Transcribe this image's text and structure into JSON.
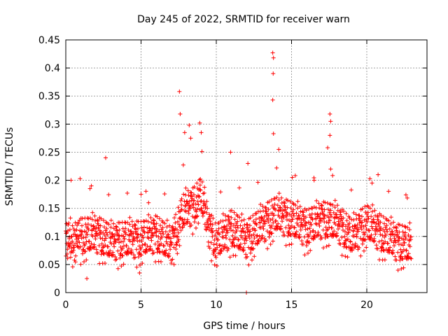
{
  "chart_data": {
    "type": "scatter",
    "marker": "plus",
    "title": "Day 245 of 2022, SRMTID for receiver warn",
    "xlabel": "GPS time / hours",
    "ylabel": "SRMTID / TECUs",
    "xlim": [
      0,
      24
    ],
    "ylim": [
      0,
      0.45
    ],
    "xticks": [
      0,
      5,
      10,
      15,
      20
    ],
    "yticks": [
      0,
      0.05,
      0.1,
      0.15,
      0.2,
      0.25,
      0.3,
      0.35,
      0.4,
      0.45
    ],
    "xtick_labels": [
      "0",
      "5",
      "10",
      "15",
      "20"
    ],
    "ytick_labels": [
      "0",
      "0.05",
      "0.1",
      "0.15",
      "0.2",
      "0.25",
      "0.3",
      "0.35",
      "0.4",
      "0.45"
    ],
    "grid": true,
    "series_color": "#ff0000",
    "series": [
      {
        "name": "SRMTID",
        "x_start": 0.0,
        "x_end": 22.95,
        "baseline": [
          [
            0,
            0.09
          ],
          [
            1,
            0.095
          ],
          [
            2,
            0.1
          ],
          [
            3,
            0.085
          ],
          [
            4,
            0.09
          ],
          [
            5,
            0.09
          ],
          [
            6,
            0.1
          ],
          [
            7,
            0.08
          ],
          [
            7.8,
            0.14
          ],
          [
            8.5,
            0.15
          ],
          [
            9,
            0.17
          ],
          [
            9.5,
            0.11
          ],
          [
            10,
            0.085
          ],
          [
            11,
            0.11
          ],
          [
            12,
            0.09
          ],
          [
            13,
            0.115
          ],
          [
            14,
            0.135
          ],
          [
            15,
            0.125
          ],
          [
            16,
            0.11
          ],
          [
            17,
            0.125
          ],
          [
            18,
            0.12
          ],
          [
            19,
            0.095
          ],
          [
            20,
            0.12
          ],
          [
            21,
            0.1
          ],
          [
            22,
            0.085
          ],
          [
            22.95,
            0.08
          ]
        ],
        "highlights": [
          [
            0.35,
            0.2
          ],
          [
            1.7,
            0.19
          ],
          [
            2.65,
            0.24
          ],
          [
            5.0,
            0.175
          ],
          [
            5.5,
            0.16
          ],
          [
            7.55,
            0.358
          ],
          [
            7.6,
            0.318
          ],
          [
            7.9,
            0.285
          ],
          [
            8.2,
            0.298
          ],
          [
            8.3,
            0.275
          ],
          [
            8.9,
            0.302
          ],
          [
            9.0,
            0.285
          ],
          [
            10.95,
            0.25
          ],
          [
            12.0,
            0.0
          ],
          [
            12.1,
            0.23
          ],
          [
            13.75,
            0.427
          ],
          [
            13.8,
            0.418
          ],
          [
            13.78,
            0.39
          ],
          [
            13.75,
            0.343
          ],
          [
            13.8,
            0.283
          ],
          [
            14.15,
            0.255
          ],
          [
            15.05,
            0.205
          ],
          [
            16.5,
            0.2
          ],
          [
            17.55,
            0.318
          ],
          [
            17.6,
            0.305
          ],
          [
            17.55,
            0.28
          ],
          [
            17.4,
            0.258
          ],
          [
            17.6,
            0.22
          ],
          [
            20.35,
            0.195
          ],
          [
            20.75,
            0.21
          ],
          [
            22.6,
            0.174
          ],
          [
            1.4,
            0.025
          ],
          [
            4.9,
            0.035
          ]
        ]
      }
    ]
  }
}
